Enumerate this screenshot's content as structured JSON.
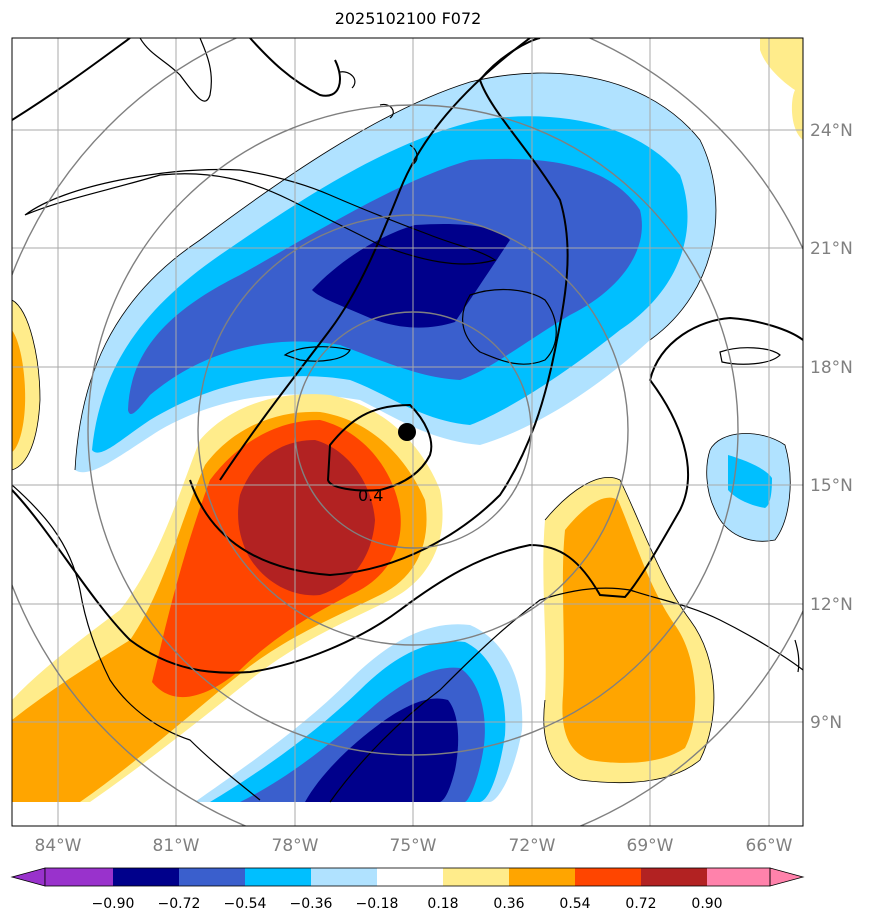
{
  "title": "2025102100 F072",
  "map": {
    "lon_labels": [
      "84°W",
      "81°W",
      "78°W",
      "75°W",
      "72°W",
      "69°W",
      "66°W"
    ],
    "lat_labels": [
      "24°N",
      "21°N",
      "18°N",
      "15°N",
      "12°N",
      "9°N"
    ],
    "contour_label": "0.4",
    "center_marker": "storm-center-dot"
  },
  "colorbar": {
    "levels": [
      "−0.90",
      "−0.72",
      "−0.54",
      "−0.36",
      "−0.18",
      "0.18",
      "0.36",
      "0.54",
      "0.72",
      "0.90"
    ],
    "colors": [
      "#9932cc",
      "#00008b",
      "#3a5fcd",
      "#00bfff",
      "#b0e2ff",
      "#ffffff",
      "#ffec8b",
      "#ffa500",
      "#ff4500",
      "#b22222",
      "#ff82ab"
    ]
  }
}
